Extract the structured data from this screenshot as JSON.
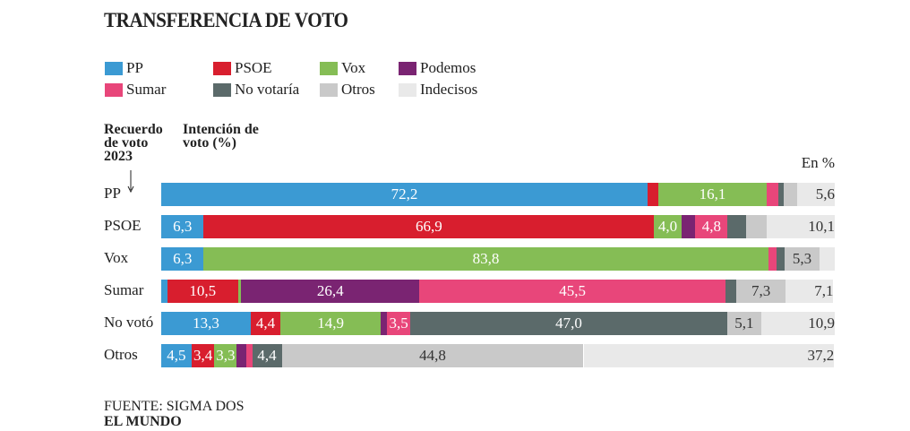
{
  "chart_data": {
    "type": "bar",
    "orientation": "horizontal",
    "stacked": true,
    "title": "TRANSFERENCIA DE VOTO",
    "row_header": "Recuerdo de voto 2023",
    "column_header": "Intención de voto (%)",
    "unit_note": "En %",
    "source": "FUENTE: SIGMA DOS",
    "publisher": "EL MUNDO",
    "xlim": [
      0,
      100
    ],
    "categories": [
      "PP",
      "PSOE",
      "Vox",
      "Sumar",
      "No votó",
      "Otros"
    ],
    "series": [
      {
        "name": "PP",
        "color": "#3b9ad3",
        "values": [
          72.2,
          6.3,
          6.3,
          0.9,
          13.3,
          4.5
        ],
        "value_labels": [
          "72,2",
          "6,3",
          "6,3",
          null,
          "13,3",
          "4,5"
        ]
      },
      {
        "name": "PSOE",
        "color": "#d81e2e",
        "values": [
          1.6,
          66.9,
          0,
          10.5,
          4.4,
          3.4
        ],
        "value_labels": [
          null,
          "66,9",
          null,
          "10,5",
          "4,4",
          "3,4"
        ]
      },
      {
        "name": "Vox",
        "color": "#85bd55",
        "values": [
          16.1,
          4.0,
          83.8,
          0.5,
          14.9,
          3.3
        ],
        "value_labels": [
          "16,1",
          "4,0",
          "83,8",
          null,
          "14,9",
          "3,3"
        ]
      },
      {
        "name": "Podemos",
        "color": "#7a2472",
        "values": [
          0,
          2.1,
          0,
          26.4,
          0.9,
          1.4
        ],
        "value_labels": [
          null,
          null,
          null,
          "26,4",
          null,
          null
        ]
      },
      {
        "name": "Sumar",
        "color": "#e8467a",
        "values": [
          1.7,
          4.8,
          1.2,
          45.5,
          3.5,
          0.9
        ],
        "value_labels": [
          null,
          "4,8",
          null,
          "45,5",
          "3,5",
          null
        ]
      },
      {
        "name": "No votaría",
        "color": "#5b6a6a",
        "values": [
          0.8,
          2.8,
          1.2,
          1.6,
          47.0,
          4.4
        ],
        "value_labels": [
          null,
          null,
          null,
          null,
          "47,0",
          "4,4"
        ]
      },
      {
        "name": "Otros",
        "color": "#c9c9c9",
        "values": [
          2.0,
          3.0,
          5.3,
          7.3,
          5.1,
          44.8
        ],
        "value_labels": [
          null,
          null,
          "5,3",
          "7,3",
          "5,1",
          "44,8"
        ]
      },
      {
        "name": "Indecisos",
        "color": "#e9e9e9",
        "values": [
          5.6,
          10.1,
          2.2,
          7.1,
          10.9,
          37.2
        ],
        "value_labels": [
          "5,6",
          "10,1",
          null,
          "7,1",
          "10,9",
          "37,2"
        ]
      }
    ]
  }
}
